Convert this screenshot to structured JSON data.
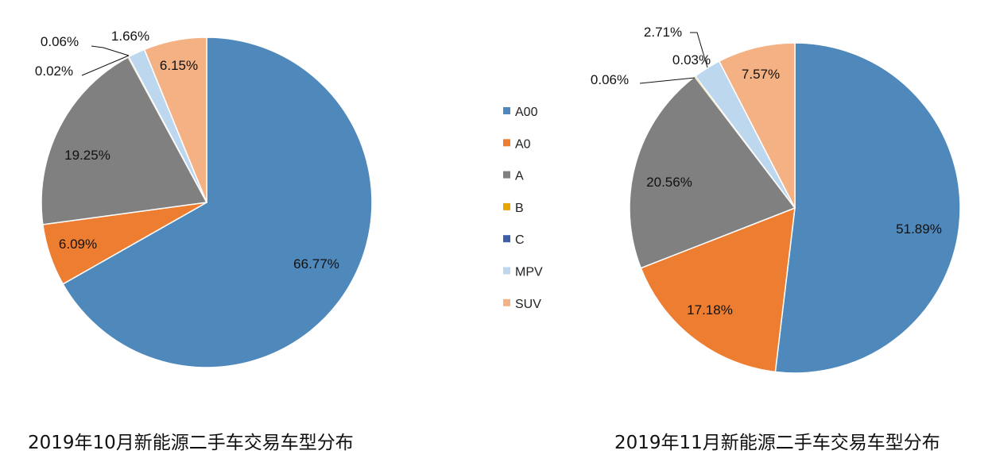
{
  "chart_data": [
    {
      "type": "pie",
      "title": "2019年10月新能源二手车交易车型分布",
      "categories": [
        "A00",
        "A0",
        "A",
        "B",
        "C",
        "MPV",
        "SUV"
      ],
      "values": [
        66.77,
        6.09,
        19.25,
        0.02,
        0.06,
        1.66,
        6.15
      ],
      "labels": [
        "66.77%",
        "6.09%",
        "19.25%",
        "0.02%",
        "0.06%",
        "1.66%",
        "6.15%"
      ]
    },
    {
      "type": "pie",
      "title": "2019年11月新能源二手车交易车型分布",
      "categories": [
        "A00",
        "A0",
        "A",
        "B",
        "C",
        "MPV",
        "SUV"
      ],
      "values": [
        51.89,
        17.18,
        20.56,
        0.06,
        0.03,
        2.71,
        7.57
      ],
      "labels": [
        "51.89%",
        "17.18%",
        "20.56%",
        "0.06%",
        "0.03%",
        "2.71%",
        "7.57%"
      ]
    }
  ],
  "legend": {
    "placement": "center",
    "items": [
      "A00",
      "A0",
      "A",
      "B",
      "C",
      "MPV",
      "SUV"
    ]
  },
  "colors": [
    "#4f88bb",
    "#ed7d31",
    "#808080",
    "#e6a700",
    "#3a60a8",
    "#bdd7ee",
    "#f4b183"
  ]
}
